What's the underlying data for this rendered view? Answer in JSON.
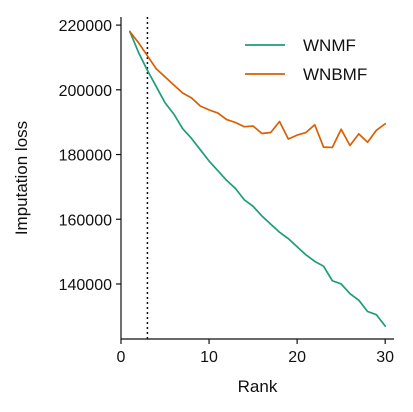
{
  "chart_data": {
    "type": "line",
    "title": "",
    "xlabel": "Rank",
    "ylabel": "Imputation loss",
    "xlim": [
      0,
      31
    ],
    "ylim": [
      123000,
      222500
    ],
    "x_ticks": [
      0,
      10,
      20,
      30
    ],
    "y_ticks": [
      140000,
      160000,
      180000,
      200000,
      220000
    ],
    "x_tick_labels": [
      "0",
      "10",
      "20",
      "30"
    ],
    "y_tick_labels": [
      "140000",
      "160000",
      "180000",
      "200000",
      "220000"
    ],
    "legend_position": "top-right",
    "reference_line": {
      "x": 3,
      "style": "dotted",
      "color": "#111111"
    },
    "x": [
      1,
      2,
      3,
      4,
      5,
      6,
      7,
      8,
      9,
      10,
      11,
      12,
      13,
      14,
      15,
      16,
      17,
      18,
      19,
      20,
      21,
      22,
      23,
      24,
      25,
      26,
      27,
      28,
      29,
      30
    ],
    "series": [
      {
        "name": "WNMF",
        "color": "#1b9e77",
        "values": [
          218000,
          211500,
          206000,
          201000,
          196000,
          192500,
          188000,
          185000,
          181500,
          178000,
          175000,
          172000,
          169500,
          166000,
          164000,
          161000,
          158500,
          156000,
          154000,
          151500,
          149000,
          147000,
          145500,
          141000,
          140000,
          137000,
          135000,
          131500,
          130500,
          127000
        ]
      },
      {
        "name": "WNBMF",
        "color": "#d95f02",
        "values": [
          218000,
          214500,
          210500,
          206500,
          204000,
          201500,
          199000,
          197500,
          195000,
          193800,
          192800,
          190800,
          189900,
          188600,
          188800,
          186500,
          186800,
          190200,
          184800,
          186000,
          186800,
          189200,
          182300,
          182200,
          187800,
          182800,
          186400,
          183800,
          187500,
          189500
        ]
      }
    ]
  }
}
